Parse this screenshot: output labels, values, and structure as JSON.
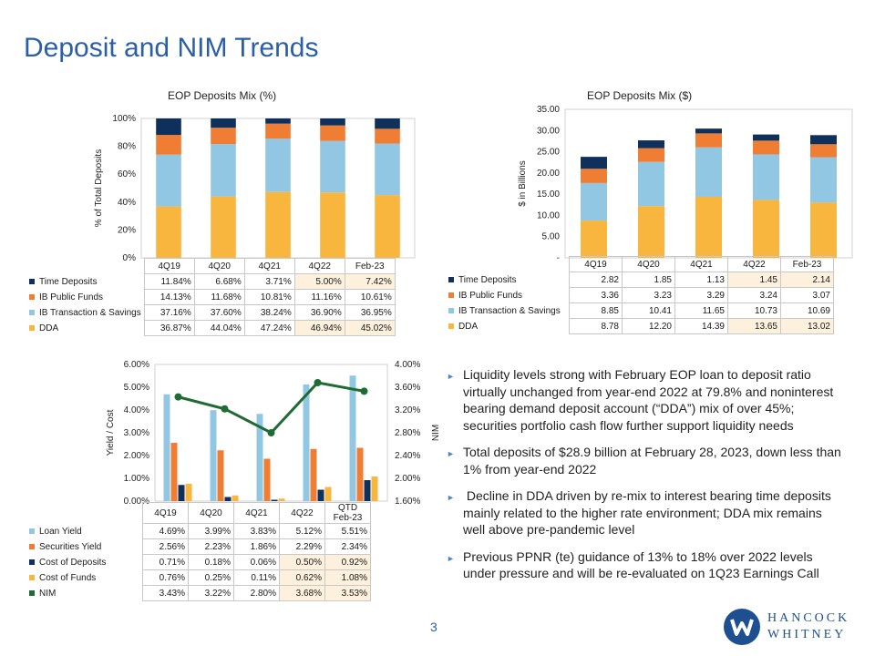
{
  "page": {
    "title": "Deposit and NIM Trends",
    "page_number": "3",
    "logo_line1": "HANCOCK",
    "logo_line2": "WHITNEY"
  },
  "colors": {
    "time_deposits": "#10305c",
    "ib_public_funds": "#ef7d34",
    "ib_transaction_savings": "#92c7e4",
    "dda": "#f8b63f",
    "loan_yield": "#92c7e4",
    "securities_yield": "#ef7d34",
    "cost_of_deposits": "#10305c",
    "cost_of_funds": "#f8b63f",
    "nim": "#1e6b33",
    "highlight": "#fdf0dc",
    "accent": "#2a5ea8"
  },
  "chart_data": [
    {
      "id": "mix_pct",
      "type": "bar",
      "stacked": true,
      "title": "EOP Deposits Mix (%)",
      "ylabel": "% of Total Deposits",
      "ylim": [
        0,
        100
      ],
      "yticks": [
        "0%",
        "20%",
        "40%",
        "60%",
        "80%",
        "100%"
      ],
      "categories": [
        "4Q19",
        "4Q20",
        "4Q21",
        "4Q22",
        "Feb-23"
      ],
      "series": [
        {
          "name": "Time Deposits",
          "values": [
            11.84,
            6.68,
            3.71,
            5.0,
            7.42
          ],
          "labels": [
            "11.84%",
            "6.68%",
            "3.71%",
            "5.00%",
            "7.42%"
          ]
        },
        {
          "name": "IB Public Funds",
          "values": [
            14.13,
            11.68,
            10.81,
            11.16,
            10.61
          ],
          "labels": [
            "14.13%",
            "11.68%",
            "10.81%",
            "11.16%",
            "10.61%"
          ]
        },
        {
          "name": "IB Transaction & Savings",
          "values": [
            37.16,
            37.6,
            38.24,
            36.9,
            36.95
          ],
          "labels": [
            "37.16%",
            "37.60%",
            "38.24%",
            "36.90%",
            "36.95%"
          ]
        },
        {
          "name": "DDA",
          "values": [
            36.87,
            44.04,
            47.24,
            46.94,
            45.02
          ],
          "labels": [
            "36.87%",
            "44.04%",
            "47.24%",
            "46.94%",
            "45.02%"
          ]
        }
      ]
    },
    {
      "id": "mix_dollars",
      "type": "bar",
      "stacked": true,
      "title": "EOP Deposits Mix ($)",
      "ylabel": "$ in Billions",
      "ylim": [
        0,
        35
      ],
      "yticks": [
        "-",
        "5.00",
        "10.00",
        "15.00",
        "20.00",
        "25.00",
        "30.00",
        "35.00"
      ],
      "categories": [
        "4Q19",
        "4Q20",
        "4Q21",
        "4Q22",
        "Feb-23"
      ],
      "series": [
        {
          "name": "Time Deposits",
          "values": [
            2.82,
            1.85,
            1.13,
            1.45,
            2.14
          ],
          "labels": [
            "2.82",
            "1.85",
            "1.13",
            "1.45",
            "2.14"
          ]
        },
        {
          "name": "IB Public Funds",
          "values": [
            3.36,
            3.23,
            3.29,
            3.24,
            3.07
          ],
          "labels": [
            "3.36",
            "3.23",
            "3.29",
            "3.24",
            "3.07"
          ]
        },
        {
          "name": "IB Transaction & Savings",
          "values": [
            8.85,
            10.41,
            11.65,
            10.73,
            10.69
          ],
          "labels": [
            "8.85",
            "10.41",
            "11.65",
            "10.73",
            "10.69"
          ]
        },
        {
          "name": "DDA",
          "values": [
            8.78,
            12.2,
            14.39,
            13.65,
            13.02
          ],
          "labels": [
            "8.78",
            "12.20",
            "14.39",
            "13.65",
            "13.02"
          ]
        }
      ]
    },
    {
      "id": "yield_nim",
      "type": "bar",
      "title": "",
      "ylabel": "Yield / Cost",
      "y2label": "NIM",
      "ylim": [
        0,
        6
      ],
      "y2lim": [
        1.6,
        4.0
      ],
      "yticks": [
        "0.00%",
        "1.00%",
        "2.00%",
        "3.00%",
        "4.00%",
        "5.00%",
        "6.00%"
      ],
      "y2ticks": [
        "1.60%",
        "2.00%",
        "2.40%",
        "2.80%",
        "3.20%",
        "3.60%",
        "4.00%"
      ],
      "categories": [
        "4Q19",
        "4Q20",
        "4Q21",
        "4Q22",
        "QTD Feb-23"
      ],
      "series": [
        {
          "name": "Loan Yield",
          "kind": "bar",
          "values": [
            4.69,
            3.99,
            3.83,
            5.12,
            5.51
          ],
          "labels": [
            "4.69%",
            "3.99%",
            "3.83%",
            "5.12%",
            "5.51%"
          ]
        },
        {
          "name": "Securities Yield",
          "kind": "bar",
          "values": [
            2.56,
            2.23,
            1.86,
            2.29,
            2.34
          ],
          "labels": [
            "2.56%",
            "2.23%",
            "1.86%",
            "2.29%",
            "2.34%"
          ]
        },
        {
          "name": "Cost of Deposits",
          "kind": "bar",
          "values": [
            0.71,
            0.18,
            0.06,
            0.5,
            0.92
          ],
          "labels": [
            "0.71%",
            "0.18%",
            "0.06%",
            "0.50%",
            "0.92%"
          ]
        },
        {
          "name": "Cost of Funds",
          "kind": "bar",
          "values": [
            0.76,
            0.25,
            0.11,
            0.62,
            1.08
          ],
          "labels": [
            "0.76%",
            "0.25%",
            "0.11%",
            "0.62%",
            "1.08%"
          ]
        },
        {
          "name": "NIM",
          "kind": "line",
          "axis": "y2",
          "values": [
            3.43,
            3.22,
            2.8,
            3.68,
            3.53
          ],
          "labels": [
            "3.43%",
            "3.22%",
            "2.80%",
            "3.68%",
            "3.53%"
          ]
        }
      ]
    }
  ],
  "bullets": [
    "Liquidity levels strong with February EOP loan to deposit ratio virtually unchanged from year-end 2022 at 79.8% and noninterest bearing demand deposit account (“DDA”) mix of over 45%; securities portfolio cash flow further support liquidity needs",
    "Total deposits of $28.9 billion at February 28, 2023, down less than 1% from year-end 2022",
    " Decline in DDA driven by re-mix to interest bearing time deposits mainly related to the higher rate environment; DDA mix remains well above pre-pandemic level",
    "Previous PPNR (te) guidance of 13% to 18% over 2022 levels under pressure and will be re-evaluated on 1Q23 Earnings Call"
  ]
}
